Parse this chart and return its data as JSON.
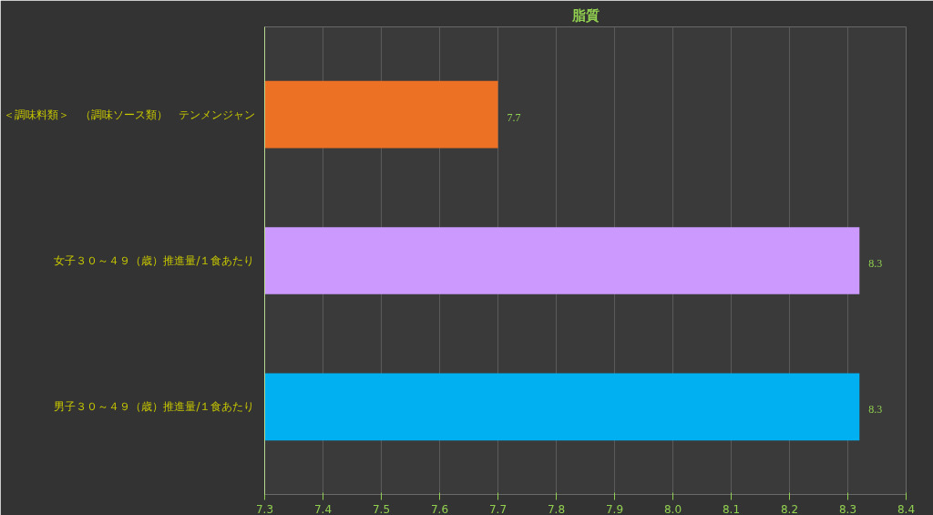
{
  "chart_data": {
    "type": "bar",
    "orientation": "horizontal",
    "title": "脂質",
    "categories": [
      "＜調味料類＞　（調味ソース類）　テンメンジャン",
      "女子３０～４９（歳）推進量/１食あたり",
      "男子３０～４９（歳）推進量/１食あたり"
    ],
    "values": [
      7.7,
      8.32,
      8.32
    ],
    "value_labels": [
      "7.7",
      "8.3",
      "8.3"
    ],
    "colors": [
      "#ed7125",
      "#cc99ff",
      "#00b0f0"
    ],
    "xlim": [
      7.3,
      8.4
    ],
    "xticks": [
      7.3,
      7.4,
      7.5,
      7.6,
      7.7,
      7.8,
      7.9,
      {
        "value": 8,
        "label": "8.0"
      },
      8.1,
      8.2,
      8.3,
      8.4
    ],
    "grid": "x"
  }
}
